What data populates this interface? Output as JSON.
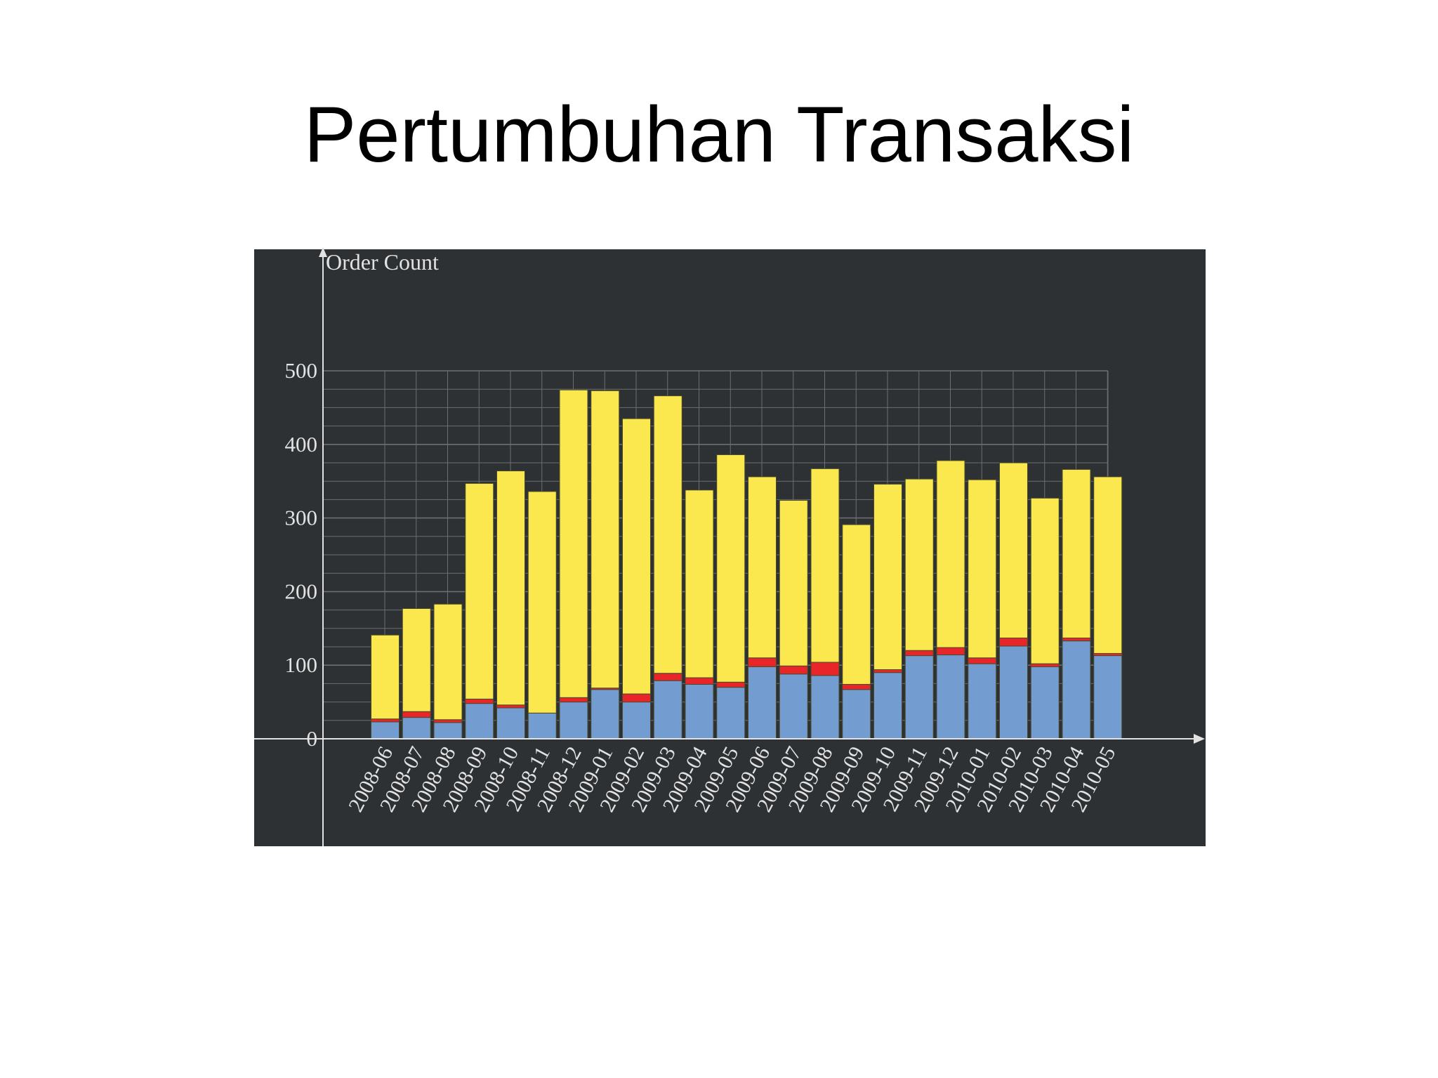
{
  "slide": {
    "title": "Pertumbuhan Transaksi"
  },
  "colors": {
    "panel_bg": "#2d3134",
    "grid": "#6b6f72",
    "axis": "#e2e2e2",
    "series_blue": "#739dd1",
    "series_red": "#e8262a",
    "series_yellow": "#fbe84e",
    "bar_outline": "#4a4a2a"
  },
  "chart_data": {
    "type": "bar",
    "stacked": true,
    "ylabel": "Order Count",
    "xlabel": "",
    "ylim": [
      0,
      500
    ],
    "yticks": [
      "0",
      "100",
      "200",
      "300",
      "400",
      "500"
    ],
    "grid": true,
    "categories": [
      "2008-06",
      "2008-07",
      "2008-08",
      "2008-09",
      "2008-10",
      "2008-11",
      "2008-12",
      "2009-01",
      "2009-02",
      "2009-03",
      "2009-04",
      "2009-05",
      "2009-06",
      "2009-07",
      "2009-08",
      "2009-09",
      "2009-10",
      "2009-11",
      "2009-12",
      "2010-01",
      "2010-02",
      "2010-03",
      "2010-04",
      "2010-05"
    ],
    "series": [
      {
        "color": "#739dd1",
        "values": [
          23,
          29,
          22,
          48,
          42,
          35,
          50,
          67,
          50,
          79,
          74,
          70,
          98,
          88,
          86,
          67,
          90,
          113,
          114,
          102,
          126,
          98,
          133,
          113
        ]
      },
      {
        "color": "#e8262a",
        "values": [
          4,
          8,
          4,
          6,
          4,
          0,
          6,
          2,
          11,
          10,
          9,
          7,
          12,
          11,
          18,
          7,
          4,
          7,
          10,
          8,
          11,
          4,
          4,
          3
        ]
      },
      {
        "color": "#fbe84e",
        "values": [
          114,
          140,
          157,
          293,
          318,
          301,
          418,
          404,
          374,
          377,
          255,
          309,
          246,
          225,
          263,
          217,
          252,
          233,
          254,
          242,
          238,
          225,
          229,
          240
        ]
      }
    ]
  }
}
